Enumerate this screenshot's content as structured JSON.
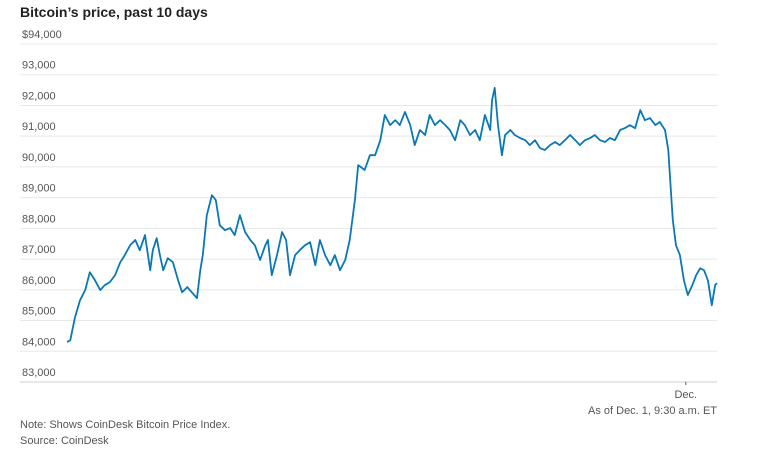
{
  "chart_data": {
    "type": "line",
    "title": "Bitcoin’s price, past 10 days",
    "xlabel": "",
    "ylabel": "",
    "ylim": [
      83000,
      94000
    ],
    "xlim": [
      0,
      10
    ],
    "x_unit": "days since start",
    "grid": true,
    "y_ticks": [
      {
        "value": 94000,
        "label": "$94,000"
      },
      {
        "value": 93000,
        "label": "93,000"
      },
      {
        "value": 92000,
        "label": "92,000"
      },
      {
        "value": 91000,
        "label": "91,000"
      },
      {
        "value": 90000,
        "label": "90,000"
      },
      {
        "value": 89000,
        "label": "89,000"
      },
      {
        "value": 88000,
        "label": "88,000"
      },
      {
        "value": 87000,
        "label": "87,000"
      },
      {
        "value": 86000,
        "label": "86,000"
      },
      {
        "value": 85000,
        "label": "85,000"
      },
      {
        "value": 84000,
        "label": "84,000"
      },
      {
        "value": 83000,
        "label": "83,000"
      }
    ],
    "x_ticks": [
      {
        "value": 9.52,
        "label": "Dec."
      }
    ],
    "series": [
      {
        "name": "Bitcoin price",
        "color": "#0a78b4",
        "points": [
          [
            0,
            84300
          ],
          [
            0.05,
            84360
          ],
          [
            0.12,
            85080
          ],
          [
            0.2,
            85660
          ],
          [
            0.28,
            85990
          ],
          [
            0.35,
            86570
          ],
          [
            0.43,
            86310
          ],
          [
            0.51,
            85990
          ],
          [
            0.58,
            86150
          ],
          [
            0.66,
            86250
          ],
          [
            0.74,
            86480
          ],
          [
            0.82,
            86900
          ],
          [
            0.89,
            87130
          ],
          [
            0.97,
            87450
          ],
          [
            1.05,
            87620
          ],
          [
            1.12,
            87290
          ],
          [
            1.2,
            87780
          ],
          [
            1.28,
            86640
          ],
          [
            1.32,
            87290
          ],
          [
            1.38,
            87680
          ],
          [
            1.43,
            87130
          ],
          [
            1.48,
            86640
          ],
          [
            1.55,
            87030
          ],
          [
            1.63,
            86900
          ],
          [
            1.71,
            86310
          ],
          [
            1.77,
            85920
          ],
          [
            1.85,
            86090
          ],
          [
            1.92,
            85920
          ],
          [
            2,
            85730
          ],
          [
            2.05,
            86640
          ],
          [
            2.09,
            87130
          ],
          [
            2.15,
            88430
          ],
          [
            2.23,
            89080
          ],
          [
            2.29,
            88920
          ],
          [
            2.35,
            88100
          ],
          [
            2.43,
            87940
          ],
          [
            2.51,
            88010
          ],
          [
            2.58,
            87780
          ],
          [
            2.66,
            88430
          ],
          [
            2.74,
            87880
          ],
          [
            2.82,
            87620
          ],
          [
            2.89,
            87450
          ],
          [
            2.97,
            86970
          ],
          [
            3.05,
            87450
          ],
          [
            3.09,
            87620
          ],
          [
            3.15,
            86480
          ],
          [
            3.23,
            87130
          ],
          [
            3.31,
            87880
          ],
          [
            3.37,
            87620
          ],
          [
            3.43,
            86480
          ],
          [
            3.51,
            87130
          ],
          [
            3.58,
            87290
          ],
          [
            3.66,
            87450
          ],
          [
            3.74,
            87550
          ],
          [
            3.82,
            86800
          ],
          [
            3.89,
            87620
          ],
          [
            3.97,
            87130
          ],
          [
            4.05,
            86800
          ],
          [
            4.12,
            87130
          ],
          [
            4.2,
            86640
          ],
          [
            4.28,
            86970
          ],
          [
            4.35,
            87620
          ],
          [
            4.43,
            88920
          ],
          [
            4.48,
            90060
          ],
          [
            4.58,
            89900
          ],
          [
            4.66,
            90380
          ],
          [
            4.74,
            90380
          ],
          [
            4.82,
            90870
          ],
          [
            4.89,
            91690
          ],
          [
            4.97,
            91360
          ],
          [
            5.05,
            91520
          ],
          [
            5.12,
            91360
          ],
          [
            5.2,
            91790
          ],
          [
            5.28,
            91360
          ],
          [
            5.35,
            90710
          ],
          [
            5.43,
            91200
          ],
          [
            5.51,
            91040
          ],
          [
            5.58,
            91690
          ],
          [
            5.66,
            91360
          ],
          [
            5.74,
            91520
          ],
          [
            5.82,
            91360
          ],
          [
            5.89,
            91200
          ],
          [
            5.97,
            90870
          ],
          [
            6.05,
            91520
          ],
          [
            6.12,
            91360
          ],
          [
            6.2,
            91040
          ],
          [
            6.28,
            91200
          ],
          [
            6.35,
            90870
          ],
          [
            6.43,
            91690
          ],
          [
            6.51,
            91200
          ],
          [
            6.54,
            92180
          ],
          [
            6.58,
            92570
          ],
          [
            6.63,
            91360
          ],
          [
            6.69,
            90380
          ],
          [
            6.74,
            91040
          ],
          [
            6.82,
            91200
          ],
          [
            6.89,
            91040
          ],
          [
            6.97,
            90940
          ],
          [
            7.05,
            90870
          ],
          [
            7.12,
            90710
          ],
          [
            7.2,
            90870
          ],
          [
            7.28,
            90610
          ],
          [
            7.35,
            90550
          ],
          [
            7.43,
            90710
          ],
          [
            7.51,
            90810
          ],
          [
            7.58,
            90710
          ],
          [
            7.66,
            90870
          ],
          [
            7.74,
            91040
          ],
          [
            7.82,
            90870
          ],
          [
            7.89,
            90710
          ],
          [
            7.97,
            90870
          ],
          [
            8.05,
            90940
          ],
          [
            8.12,
            91040
          ],
          [
            8.2,
            90870
          ],
          [
            8.28,
            90810
          ],
          [
            8.35,
            90940
          ],
          [
            8.43,
            90870
          ],
          [
            8.51,
            91200
          ],
          [
            8.58,
            91260
          ],
          [
            8.66,
            91360
          ],
          [
            8.74,
            91260
          ],
          [
            8.82,
            91850
          ],
          [
            8.89,
            91520
          ],
          [
            8.97,
            91590
          ],
          [
            9.05,
            91360
          ],
          [
            9.12,
            91460
          ],
          [
            9.2,
            91200
          ],
          [
            9.25,
            90550
          ],
          [
            9.28,
            89570
          ],
          [
            9.32,
            88270
          ],
          [
            9.37,
            87450
          ],
          [
            9.43,
            87130
          ],
          [
            9.49,
            86310
          ],
          [
            9.55,
            85830
          ],
          [
            9.62,
            86150
          ],
          [
            9.68,
            86480
          ],
          [
            9.74,
            86700
          ],
          [
            9.8,
            86640
          ],
          [
            9.86,
            86310
          ],
          [
            9.92,
            85500
          ],
          [
            9.97,
            86150
          ],
          [
            10,
            86220
          ]
        ]
      }
    ],
    "annotations": {
      "as_of": "As of Dec. 1, 9:30 a.m. ET",
      "note": "Note: Shows CoinDesk Bitcoin Price Index.",
      "source": "Source: CoinDesk"
    }
  }
}
